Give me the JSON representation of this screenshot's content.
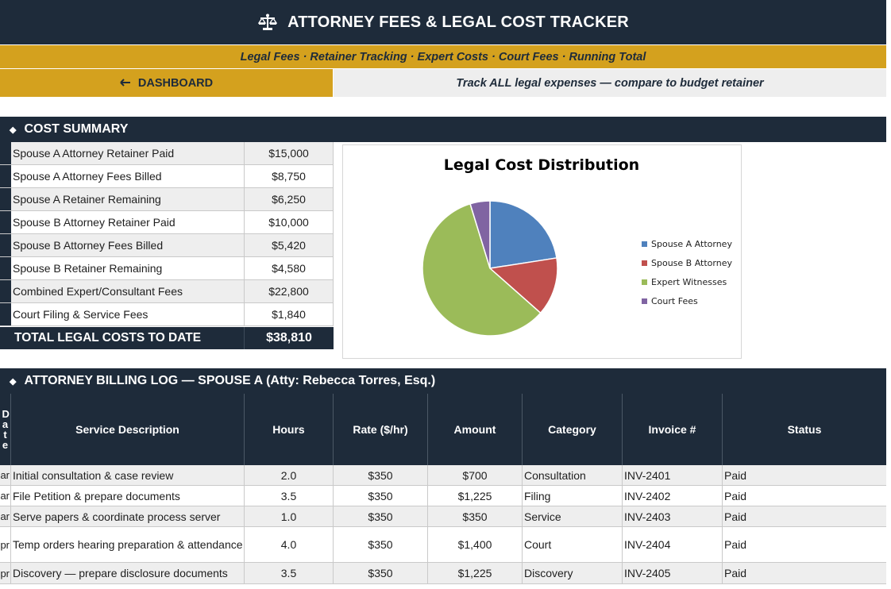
{
  "header": {
    "title": "ATTORNEY FEES & LEGAL COST TRACKER",
    "title_icon": "scales-of-justice-icon",
    "subtitle": "Legal Fees · Retainer Tracking · Expert Costs · Court Fees · Running Total",
    "dashboard_label": "DASHBOARD",
    "dashboard_icon": "arrow-left-icon",
    "tagline": "Track ALL legal expenses — compare to budget retainer"
  },
  "colors": {
    "navy": "#1e2b3a",
    "gold": "#d4a11e",
    "row_alt": "#eeeeee"
  },
  "summary": {
    "section_title": "COST SUMMARY",
    "rows": [
      {
        "label": "Spouse A Attorney Retainer Paid",
        "value": "$15,000"
      },
      {
        "label": "Spouse A Attorney Fees Billed",
        "value": "$8,750"
      },
      {
        "label": "Spouse A Retainer Remaining",
        "value": "$6,250"
      },
      {
        "label": "Spouse B Attorney Retainer Paid",
        "value": "$10,000"
      },
      {
        "label": "Spouse B Attorney Fees Billed",
        "value": "$5,420"
      },
      {
        "label": "Spouse B Retainer Remaining",
        "value": "$4,580"
      },
      {
        "label": "Combined Expert/Consultant Fees",
        "value": "$22,800"
      },
      {
        "label": "Court Filing & Service Fees",
        "value": "$1,840"
      }
    ],
    "total_label": "TOTAL LEGAL COSTS TO DATE",
    "total_value": "$38,810"
  },
  "chart_data": {
    "type": "pie",
    "title": "Legal Cost Distribution",
    "categories": [
      "Spouse A Attorney",
      "Spouse B Attorney",
      "Expert Witnesses",
      "Court Fees"
    ],
    "values": [
      8750,
      5420,
      22800,
      1840
    ],
    "colors": [
      "#4f81bd",
      "#c0504d",
      "#9bbb59",
      "#8064a2"
    ],
    "legend": "right"
  },
  "billing": {
    "section_title": "ATTORNEY BILLING LOG — SPOUSE A (Atty: Rebecca Torres, Esq.)",
    "columns": [
      "D a t e",
      "Service Description",
      "Hours",
      "Rate ($/hr)",
      "Amount",
      "Category",
      "Invoice #",
      "Status"
    ],
    "rows": [
      {
        "date": "ar",
        "desc": "Initial consultation & case review",
        "hours": "2.0",
        "rate": "$350",
        "amount": "$700",
        "category": "Consultation",
        "invoice": "INV-2401",
        "status": "Paid"
      },
      {
        "date": "ar",
        "desc": "File Petition & prepare documents",
        "hours": "3.5",
        "rate": "$350",
        "amount": "$1,225",
        "category": "Filing",
        "invoice": "INV-2402",
        "status": "Paid"
      },
      {
        "date": "ar",
        "desc": "Serve papers & coordinate process server",
        "hours": "1.0",
        "rate": "$350",
        "amount": "$350",
        "category": "Service",
        "invoice": "INV-2403",
        "status": "Paid"
      },
      {
        "date": "pr",
        "desc": "Temp orders hearing preparation & attendance",
        "hours": "4.0",
        "rate": "$350",
        "amount": "$1,400",
        "category": "Court",
        "invoice": "INV-2404",
        "status": "Paid"
      },
      {
        "date": "pr",
        "desc": "Discovery — prepare disclosure documents",
        "hours": "3.5",
        "rate": "$350",
        "amount": "$1,225",
        "category": "Discovery",
        "invoice": "INV-2405",
        "status": "Paid"
      }
    ]
  }
}
